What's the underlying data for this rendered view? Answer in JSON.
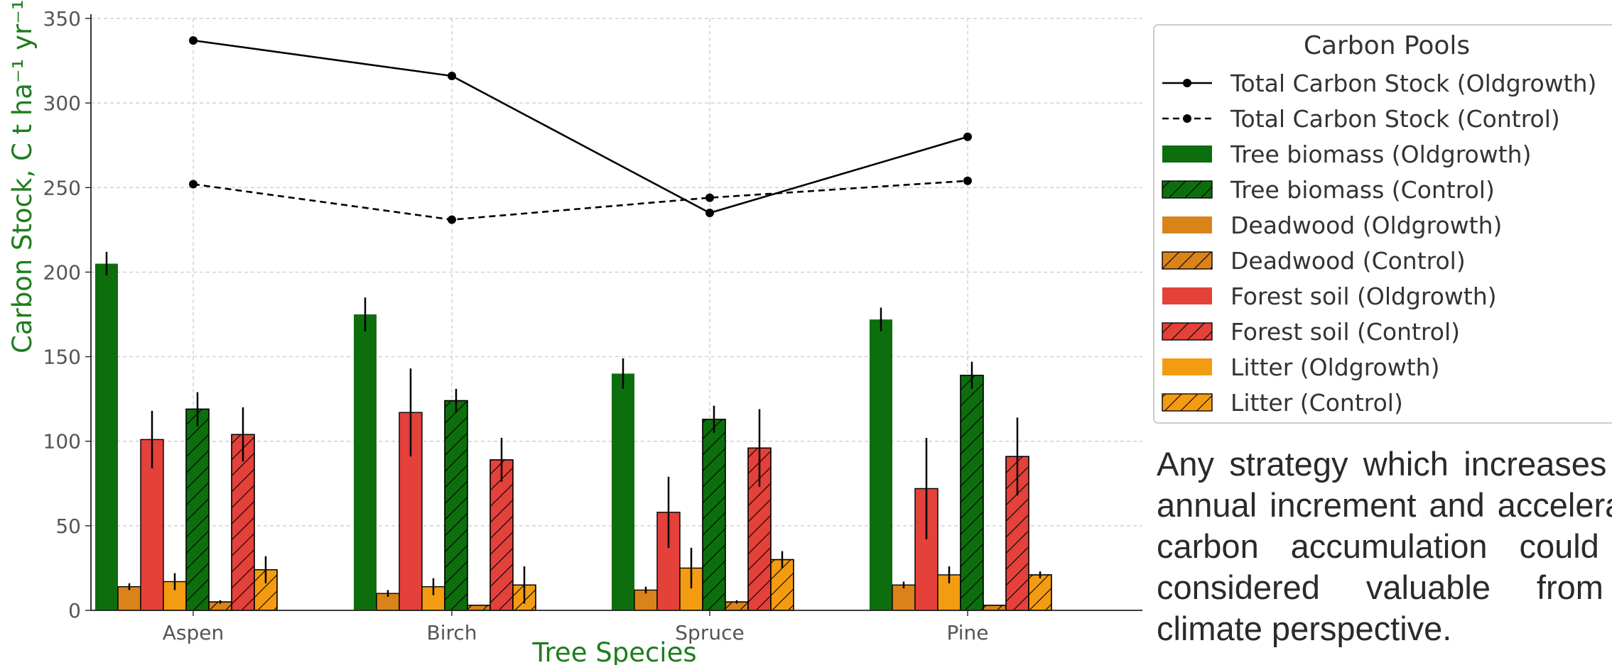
{
  "colors": {
    "tree": "#0d6e0d",
    "deadwood": "#d9831a",
    "soil": "#e3413a",
    "litter": "#f39c12",
    "axis_label": "#1e7d1e",
    "line": "#000000",
    "grid": "#c8c8c8",
    "tick": "#555555"
  },
  "chart_data": {
    "type": "bar",
    "xlabel": "Tree Species",
    "ylabel": "Carbon Stock, C t ha⁻¹ yr⁻¹",
    "ylim": [
      0,
      350
    ],
    "yticks": [
      0,
      50,
      100,
      150,
      200,
      250,
      300,
      350
    ],
    "grid": true,
    "legend_position": "top-right",
    "categories": [
      "Aspen",
      "Birch",
      "Spruce",
      "Pine"
    ],
    "series": [
      {
        "name": "Tree biomass (Oldgrowth)",
        "values": [
          205,
          175,
          140,
          172
        ],
        "errors": [
          7,
          10,
          9,
          7
        ],
        "color_key": "tree",
        "hatch": false
      },
      {
        "name": "Deadwood (Oldgrowth)",
        "values": [
          14,
          10,
          12,
          15
        ],
        "errors": [
          2,
          2,
          2,
          2
        ],
        "color_key": "deadwood",
        "hatch": false
      },
      {
        "name": "Forest soil (Oldgrowth)",
        "values": [
          101,
          117,
          58,
          72
        ],
        "errors": [
          17,
          26,
          21,
          30
        ],
        "color_key": "soil",
        "hatch": false
      },
      {
        "name": "Litter (Oldgrowth)",
        "values": [
          17,
          14,
          25,
          21
        ],
        "errors": [
          5,
          5,
          12,
          5
        ],
        "color_key": "litter",
        "hatch": false
      },
      {
        "name": "Tree biomass (Control)",
        "values": [
          119,
          124,
          113,
          139
        ],
        "errors": [
          10,
          7,
          8,
          8
        ],
        "color_key": "tree",
        "hatch": true
      },
      {
        "name": "Deadwood (Control)",
        "values": [
          5,
          3,
          5,
          3
        ],
        "errors": [
          1,
          0,
          1,
          0
        ],
        "color_key": "deadwood",
        "hatch": true
      },
      {
        "name": "Forest soil (Control)",
        "values": [
          104,
          89,
          96,
          91
        ],
        "errors": [
          16,
          13,
          23,
          23
        ],
        "color_key": "soil",
        "hatch": true
      },
      {
        "name": "Litter (Control)",
        "values": [
          24,
          15,
          30,
          21
        ],
        "errors": [
          8,
          11,
          5,
          2
        ],
        "color_key": "litter",
        "hatch": true
      }
    ],
    "lines": [
      {
        "name": "Total Carbon Stock (Oldgrowth)",
        "values": [
          337,
          316,
          235,
          280
        ],
        "dashed": false
      },
      {
        "name": "Total Carbon Stock (Control)",
        "values": [
          252,
          231,
          244,
          254
        ],
        "dashed": true
      }
    ],
    "legend": {
      "title": "Carbon Pools",
      "entries": [
        {
          "label": "Total Carbon Stock (Oldgrowth)",
          "kind": "line",
          "dashed": false
        },
        {
          "label": "Total Carbon Stock (Control)",
          "kind": "line",
          "dashed": true
        },
        {
          "label": "Tree biomass (Oldgrowth)",
          "kind": "bar",
          "color_key": "tree",
          "hatch": false
        },
        {
          "label": "Tree biomass (Control)",
          "kind": "bar",
          "color_key": "tree",
          "hatch": true
        },
        {
          "label": "Deadwood (Oldgrowth)",
          "kind": "bar",
          "color_key": "deadwood",
          "hatch": false
        },
        {
          "label": "Deadwood (Control)",
          "kind": "bar",
          "color_key": "deadwood",
          "hatch": true
        },
        {
          "label": "Forest soil (Oldgrowth)",
          "kind": "bar",
          "color_key": "soil",
          "hatch": false
        },
        {
          "label": "Forest soil (Control)",
          "kind": "bar",
          "color_key": "soil",
          "hatch": true
        },
        {
          "label": "Litter (Oldgrowth)",
          "kind": "bar",
          "color_key": "litter",
          "hatch": false
        },
        {
          "label": "Litter (Control)",
          "kind": "bar",
          "color_key": "litter",
          "hatch": true
        }
      ]
    }
  },
  "side_text": "Any strategy which increases the annual increment and accelerates carbon accumulation could be considered valuable from a climate perspective."
}
